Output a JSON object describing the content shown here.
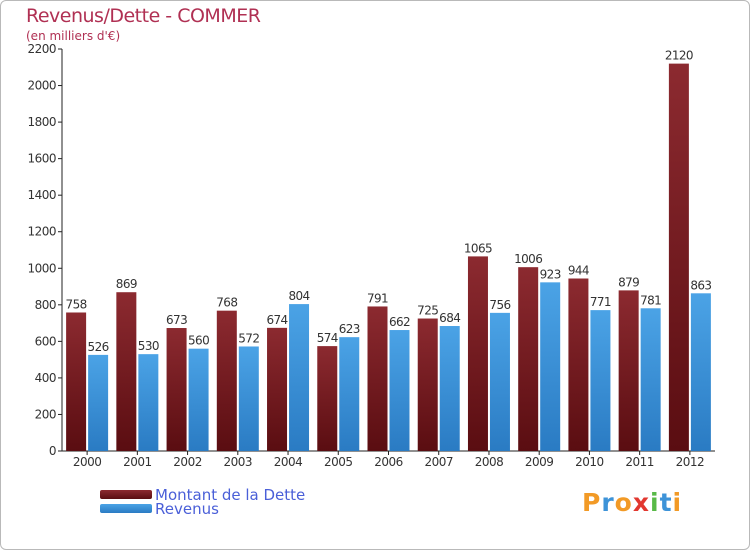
{
  "chart_data": {
    "type": "bar",
    "title": "Revenus/Dette - COMMER",
    "subtitle": "(en milliers d'€)",
    "categories": [
      "2000",
      "2001",
      "2002",
      "2003",
      "2004",
      "2005",
      "2006",
      "2007",
      "2008",
      "2009",
      "2010",
      "2011",
      "2012"
    ],
    "series": [
      {
        "name": "Montant de la Dette",
        "color": "#7a1a1f",
        "values": [
          758,
          869,
          673,
          768,
          674,
          574,
          791,
          725,
          1065,
          1006,
          944,
          879,
          2120
        ]
      },
      {
        "name": "Revenus",
        "color": "#3d93d8",
        "values": [
          526,
          530,
          560,
          572,
          804,
          623,
          662,
          684,
          756,
          923,
          771,
          781,
          863
        ]
      }
    ],
    "ylim": [
      0,
      2200
    ],
    "yticks": [
      0,
      200,
      400,
      600,
      800,
      1000,
      1200,
      1400,
      1600,
      1800,
      2000,
      2200
    ],
    "grid": false,
    "legend": "bottom-left"
  },
  "legend": {
    "debt_label": "Montant de la Dette",
    "revenue_label": "Revenus"
  },
  "logo": {
    "letters": [
      "P",
      "r",
      "o",
      "x",
      "i",
      "t",
      "i"
    ],
    "colors": [
      "#f29a26",
      "#3d93d8",
      "#f29a26",
      "#e2372f",
      "#58b947",
      "#3d93d8",
      "#f29a26"
    ]
  }
}
